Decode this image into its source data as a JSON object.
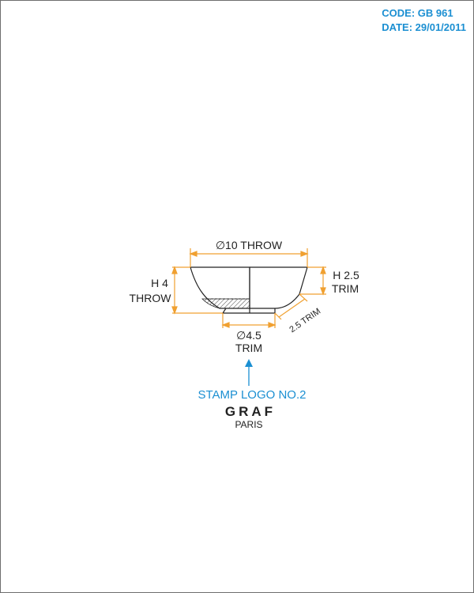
{
  "header": {
    "code": "CODE: GB 961",
    "date": "DATE: 29/01/2011"
  },
  "dimensions": {
    "top_diameter": "∅10 THROW",
    "height_left_line1": "H 4",
    "height_left_line2": "THROW",
    "height_right_line1": "H 2.5",
    "height_right_line2": "TRIM",
    "slant": "2.5 TRIM",
    "bottom_diameter_line1": "∅4.5",
    "bottom_diameter_line2": "TRIM"
  },
  "stamp": {
    "label": "STAMP LOGO NO.2",
    "brand": "GRAF",
    "city": "PARIS"
  },
  "colors": {
    "dimension_orange": "#f0a030",
    "accent_blue": "#1b8fd2",
    "line_dark": "#222222"
  }
}
